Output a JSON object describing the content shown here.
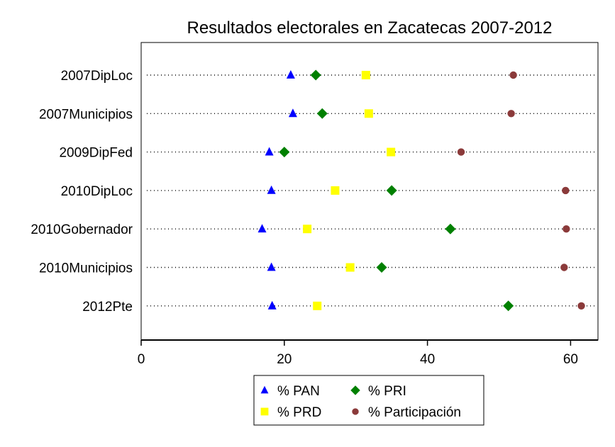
{
  "chart_data": {
    "type": "scatter",
    "title": "Resultados electorales en Zacatecas 2007-2012",
    "xlabel": "",
    "ylabel": "",
    "xlim": [
      0,
      64
    ],
    "xticks": [
      0,
      20,
      40,
      60
    ],
    "grid": "horizontal dotted",
    "legend_position": "bottom-center",
    "categories": [
      "2007DipLoc",
      "2007Municipios",
      "2009DipFed",
      "2010DipLoc",
      "2010Gobernador",
      "2010Municipios",
      "2012Pte"
    ],
    "series": [
      {
        "name": "% PAN",
        "color": "#0000ff",
        "marker": "triangle",
        "values": [
          20.9,
          21.2,
          17.9,
          18.2,
          16.9,
          18.2,
          18.3
        ]
      },
      {
        "name": "% PRI",
        "color": "#008000",
        "marker": "diamond",
        "values": [
          24.4,
          25.3,
          20.0,
          35.0,
          43.2,
          33.6,
          51.3
        ]
      },
      {
        "name": "% PRD",
        "color": "#ffff00",
        "marker": "square",
        "values": [
          31.4,
          31.8,
          34.9,
          27.1,
          23.2,
          29.2,
          24.6
        ]
      },
      {
        "name": "% Participación",
        "color": "#8b3a3a",
        "marker": "circle",
        "values": [
          52.0,
          51.7,
          44.7,
          59.3,
          59.4,
          59.1,
          61.5
        ]
      }
    ]
  }
}
